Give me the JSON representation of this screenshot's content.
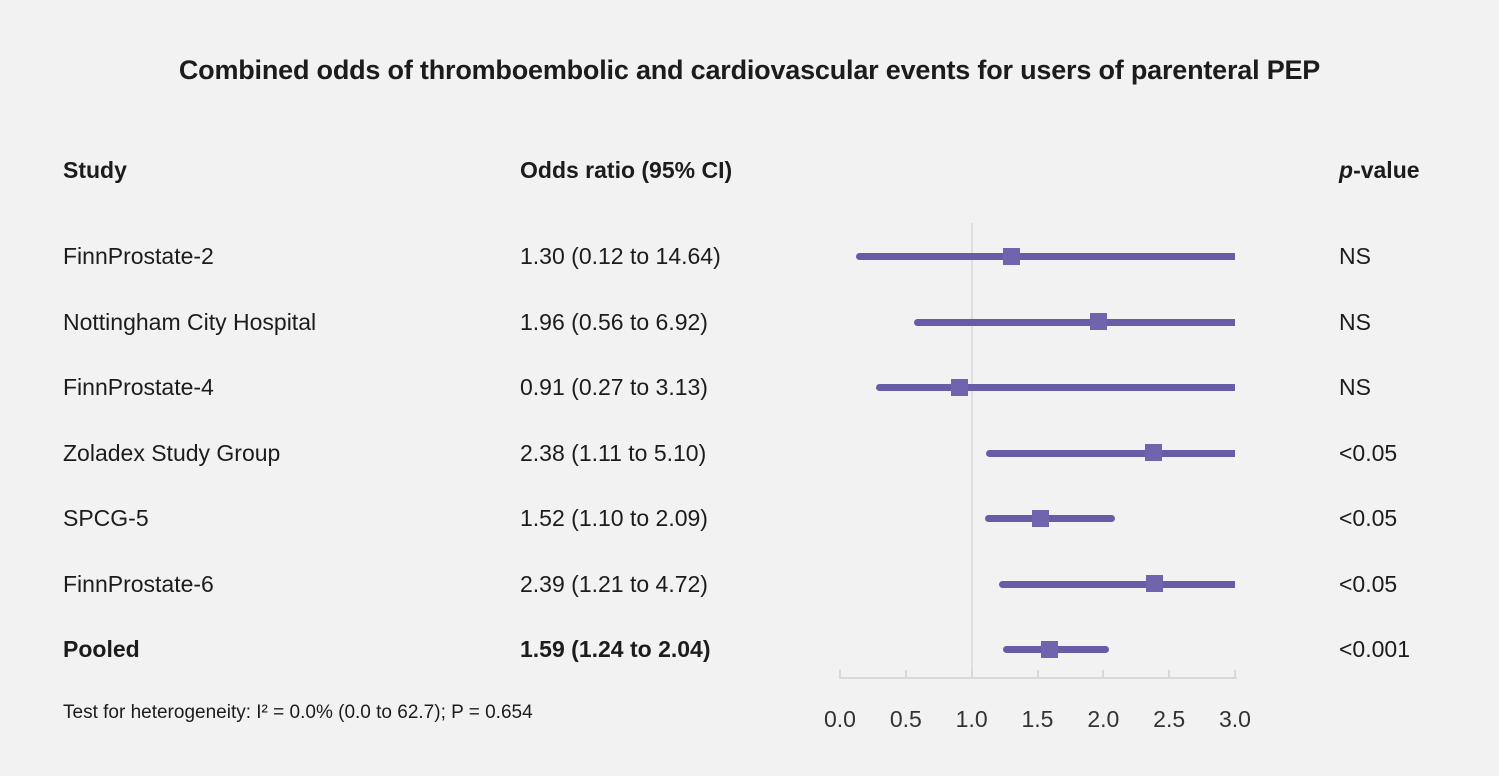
{
  "chart_data": {
    "type": "forest",
    "title": "Combined odds of thromboembolic and cardiovascular events for users of parenteral PEP",
    "columns": {
      "study": "Study",
      "odds_ratio": "Odds ratio (95% CI)",
      "p_italic": "p",
      "p_rest": "-value"
    },
    "rows": [
      {
        "study": "FinnProstate-2",
        "or": 1.3,
        "ci_low": 0.12,
        "ci_high": 14.64,
        "or_text": "1.30 (0.12 to 14.64)",
        "p_value": "NS",
        "bold": false
      },
      {
        "study": "Nottingham City Hospital",
        "or": 1.96,
        "ci_low": 0.56,
        "ci_high": 6.92,
        "or_text": "1.96 (0.56 to 6.92)",
        "p_value": "NS",
        "bold": false
      },
      {
        "study": "FinnProstate-4",
        "or": 0.91,
        "ci_low": 0.27,
        "ci_high": 3.13,
        "or_text": "0.91 (0.27 to 3.13)",
        "p_value": "NS",
        "bold": false
      },
      {
        "study": "Zoladex Study Group",
        "or": 2.38,
        "ci_low": 1.11,
        "ci_high": 5.1,
        "or_text": "2.38 (1.11 to 5.10)",
        "p_value": "<0.05",
        "bold": false
      },
      {
        "study": "SPCG-5",
        "or": 1.52,
        "ci_low": 1.1,
        "ci_high": 2.09,
        "or_text": "1.52 (1.10 to 2.09)",
        "p_value": "<0.05",
        "bold": false
      },
      {
        "study": "FinnProstate-6",
        "or": 2.39,
        "ci_low": 1.21,
        "ci_high": 4.72,
        "or_text": "2.39 (1.21 to 4.72)",
        "p_value": "<0.05",
        "bold": false
      },
      {
        "study": "Pooled",
        "or": 1.59,
        "ci_low": 1.24,
        "ci_high": 2.04,
        "or_text": "1.59 (1.24 to 2.04)",
        "p_value": "<0.001",
        "bold": true
      }
    ],
    "x_axis": {
      "tick_labels": [
        "0.0",
        "0.5",
        "1.0",
        "1.5",
        "2.0",
        "2.5",
        "3.0"
      ],
      "tick_values": [
        0,
        0.5,
        1,
        1.5,
        2,
        2.5,
        3
      ],
      "xlim": [
        0,
        3
      ],
      "reference_line": 1.0
    },
    "footnote": "Test for heterogeneity: I² = 0.0% (0.0 to 62.7); P = 0.654",
    "legend": "none",
    "grid": "off",
    "colors": {
      "background": "#f2f2f2",
      "ci_line": "#695CA7",
      "marker": "#7164AE",
      "reference_line": "#DBDFE4",
      "axis": "#D6DADE",
      "text": "#1c1c1c"
    }
  }
}
